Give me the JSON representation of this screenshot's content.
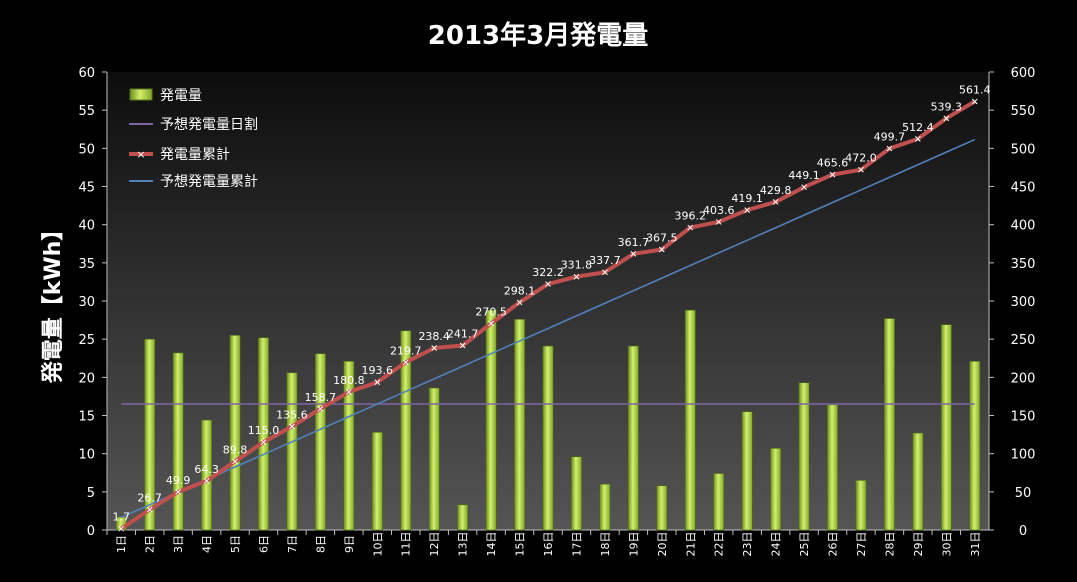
{
  "chart_data": {
    "type": "bar",
    "title": "2013年3月発電量",
    "ylabel": "発電量【kWh】",
    "ylabel2": "",
    "xlabel": "",
    "ylim": [
      0,
      60
    ],
    "y2lim": [
      0,
      600
    ],
    "yticks": [
      0,
      5,
      10,
      15,
      20,
      25,
      30,
      35,
      40,
      45,
      50,
      55,
      60
    ],
    "y2ticks": [
      0,
      50,
      100,
      150,
      200,
      250,
      300,
      350,
      400,
      450,
      500,
      550,
      600
    ],
    "grid": false,
    "legend_position": "top-left",
    "categories": [
      "1日",
      "2日",
      "3日",
      "4日",
      "5日",
      "6日",
      "7日",
      "8日",
      "9日",
      "10日",
      "11日",
      "12日",
      "13日",
      "14日",
      "15日",
      "16日",
      "17日",
      "18日",
      "19日",
      "20日",
      "21日",
      "22日",
      "23日",
      "24日",
      "25日",
      "26日",
      "27日",
      "28日",
      "29日",
      "30日",
      "31日"
    ],
    "series": [
      {
        "name": "発電量",
        "type": "bar",
        "axis": "left",
        "color": "#9acd32",
        "values": [
          1.7,
          25.0,
          23.2,
          14.4,
          25.5,
          25.2,
          20.6,
          23.1,
          22.1,
          12.8,
          26.1,
          18.6,
          3.3,
          28.8,
          27.6,
          24.1,
          9.6,
          6.0,
          24.1,
          5.8,
          28.8,
          7.4,
          15.5,
          10.7,
          19.3,
          16.4,
          6.5,
          27.7,
          12.7,
          26.9,
          22.1
        ]
      },
      {
        "name": "予想発電量日割",
        "type": "line",
        "axis": "left",
        "color": "#8064a2",
        "values": [
          16.5,
          16.5,
          16.5,
          16.5,
          16.5,
          16.5,
          16.5,
          16.5,
          16.5,
          16.5,
          16.5,
          16.5,
          16.5,
          16.5,
          16.5,
          16.5,
          16.5,
          16.5,
          16.5,
          16.5,
          16.5,
          16.5,
          16.5,
          16.5,
          16.5,
          16.5,
          16.5,
          16.5,
          16.5,
          16.5,
          16.5
        ]
      },
      {
        "name": "発電量累計",
        "type": "line",
        "axis": "right",
        "color": "#c0504d",
        "values": [
          1.7,
          26.7,
          49.9,
          64.3,
          89.8,
          115.0,
          135.6,
          158.7,
          180.8,
          193.6,
          219.7,
          238.4,
          241.7,
          270.5,
          298.1,
          322.2,
          331.8,
          337.7,
          361.7,
          367.5,
          396.2,
          403.6,
          419.1,
          429.8,
          449.1,
          465.6,
          472.0,
          499.7,
          512.4,
          539.3,
          561.4
        ],
        "labels": [
          "1.7",
          "26.7",
          "49.9",
          "64.3",
          "89.8",
          "115.0",
          "135.6",
          "158.7",
          "180.8",
          "193.6",
          "219.7",
          "238.4",
          "241.7",
          "270.5",
          "298.1",
          "322.2",
          "331.8",
          "337.7",
          "361.7",
          "367.5",
          "396.2",
          "403.6",
          "419.1",
          "429.8",
          "449.1",
          "465.6",
          "472.0",
          "499.7",
          "512.4",
          "539.3",
          "561.4"
        ]
      },
      {
        "name": "予想発電量累計",
        "type": "line",
        "axis": "right",
        "color": "#4f81bd",
        "values": [
          16.5,
          33.0,
          49.5,
          66.0,
          82.5,
          99.0,
          115.5,
          132.0,
          148.5,
          165.0,
          181.5,
          198.0,
          214.5,
          231.0,
          247.5,
          264.0,
          280.5,
          297.0,
          313.5,
          330.0,
          346.5,
          363.0,
          379.5,
          396.0,
          412.5,
          429.0,
          445.5,
          462.0,
          478.5,
          495.0,
          511.5
        ]
      }
    ]
  }
}
